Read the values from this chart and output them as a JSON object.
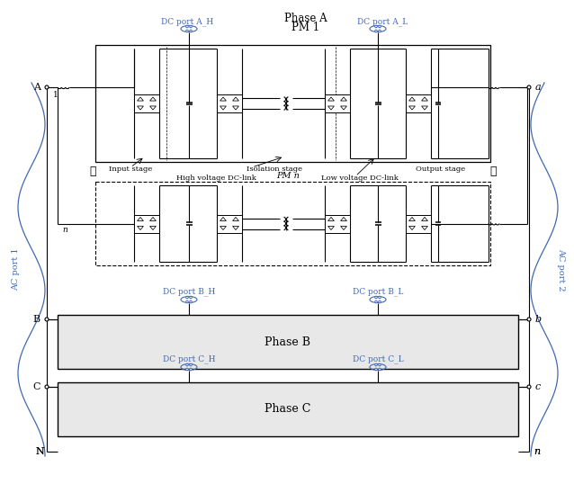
{
  "bg_color": "#ffffff",
  "black": "#000000",
  "blue": "#4169b0",
  "phase_a_label1": "Phase A",
  "phase_a_label2": "PM 1",
  "phase_b_label": "Phase B",
  "phase_c_label": "Phase C",
  "pm_n_label": "PM n",
  "ac_port1": "AC port 1",
  "ac_port2": "AC port 2",
  "dc_port_AH": "DC port A_H",
  "dc_port_AL": "DC port A_L",
  "dc_port_BH": "DC port B_H",
  "dc_port_BL": "DC port B_L",
  "dc_port_CH": "DC port C_H",
  "dc_port_CL": "DC port C_L",
  "label_input": "Input stage",
  "label_isolation": "Isolation stage",
  "label_output": "Output stage",
  "label_hv": "High voltage DC-link",
  "label_lv": "Low voltage DC-link",
  "node_A": "A",
  "node_B": "B",
  "node_C": "C",
  "node_N": "N",
  "node_a": "a",
  "node_b": "b",
  "node_c": "c",
  "node_n": "n",
  "node_1": "1",
  "node_n_lower": "n",
  "figw": 6.38,
  "figh": 5.38,
  "dpi": 100
}
